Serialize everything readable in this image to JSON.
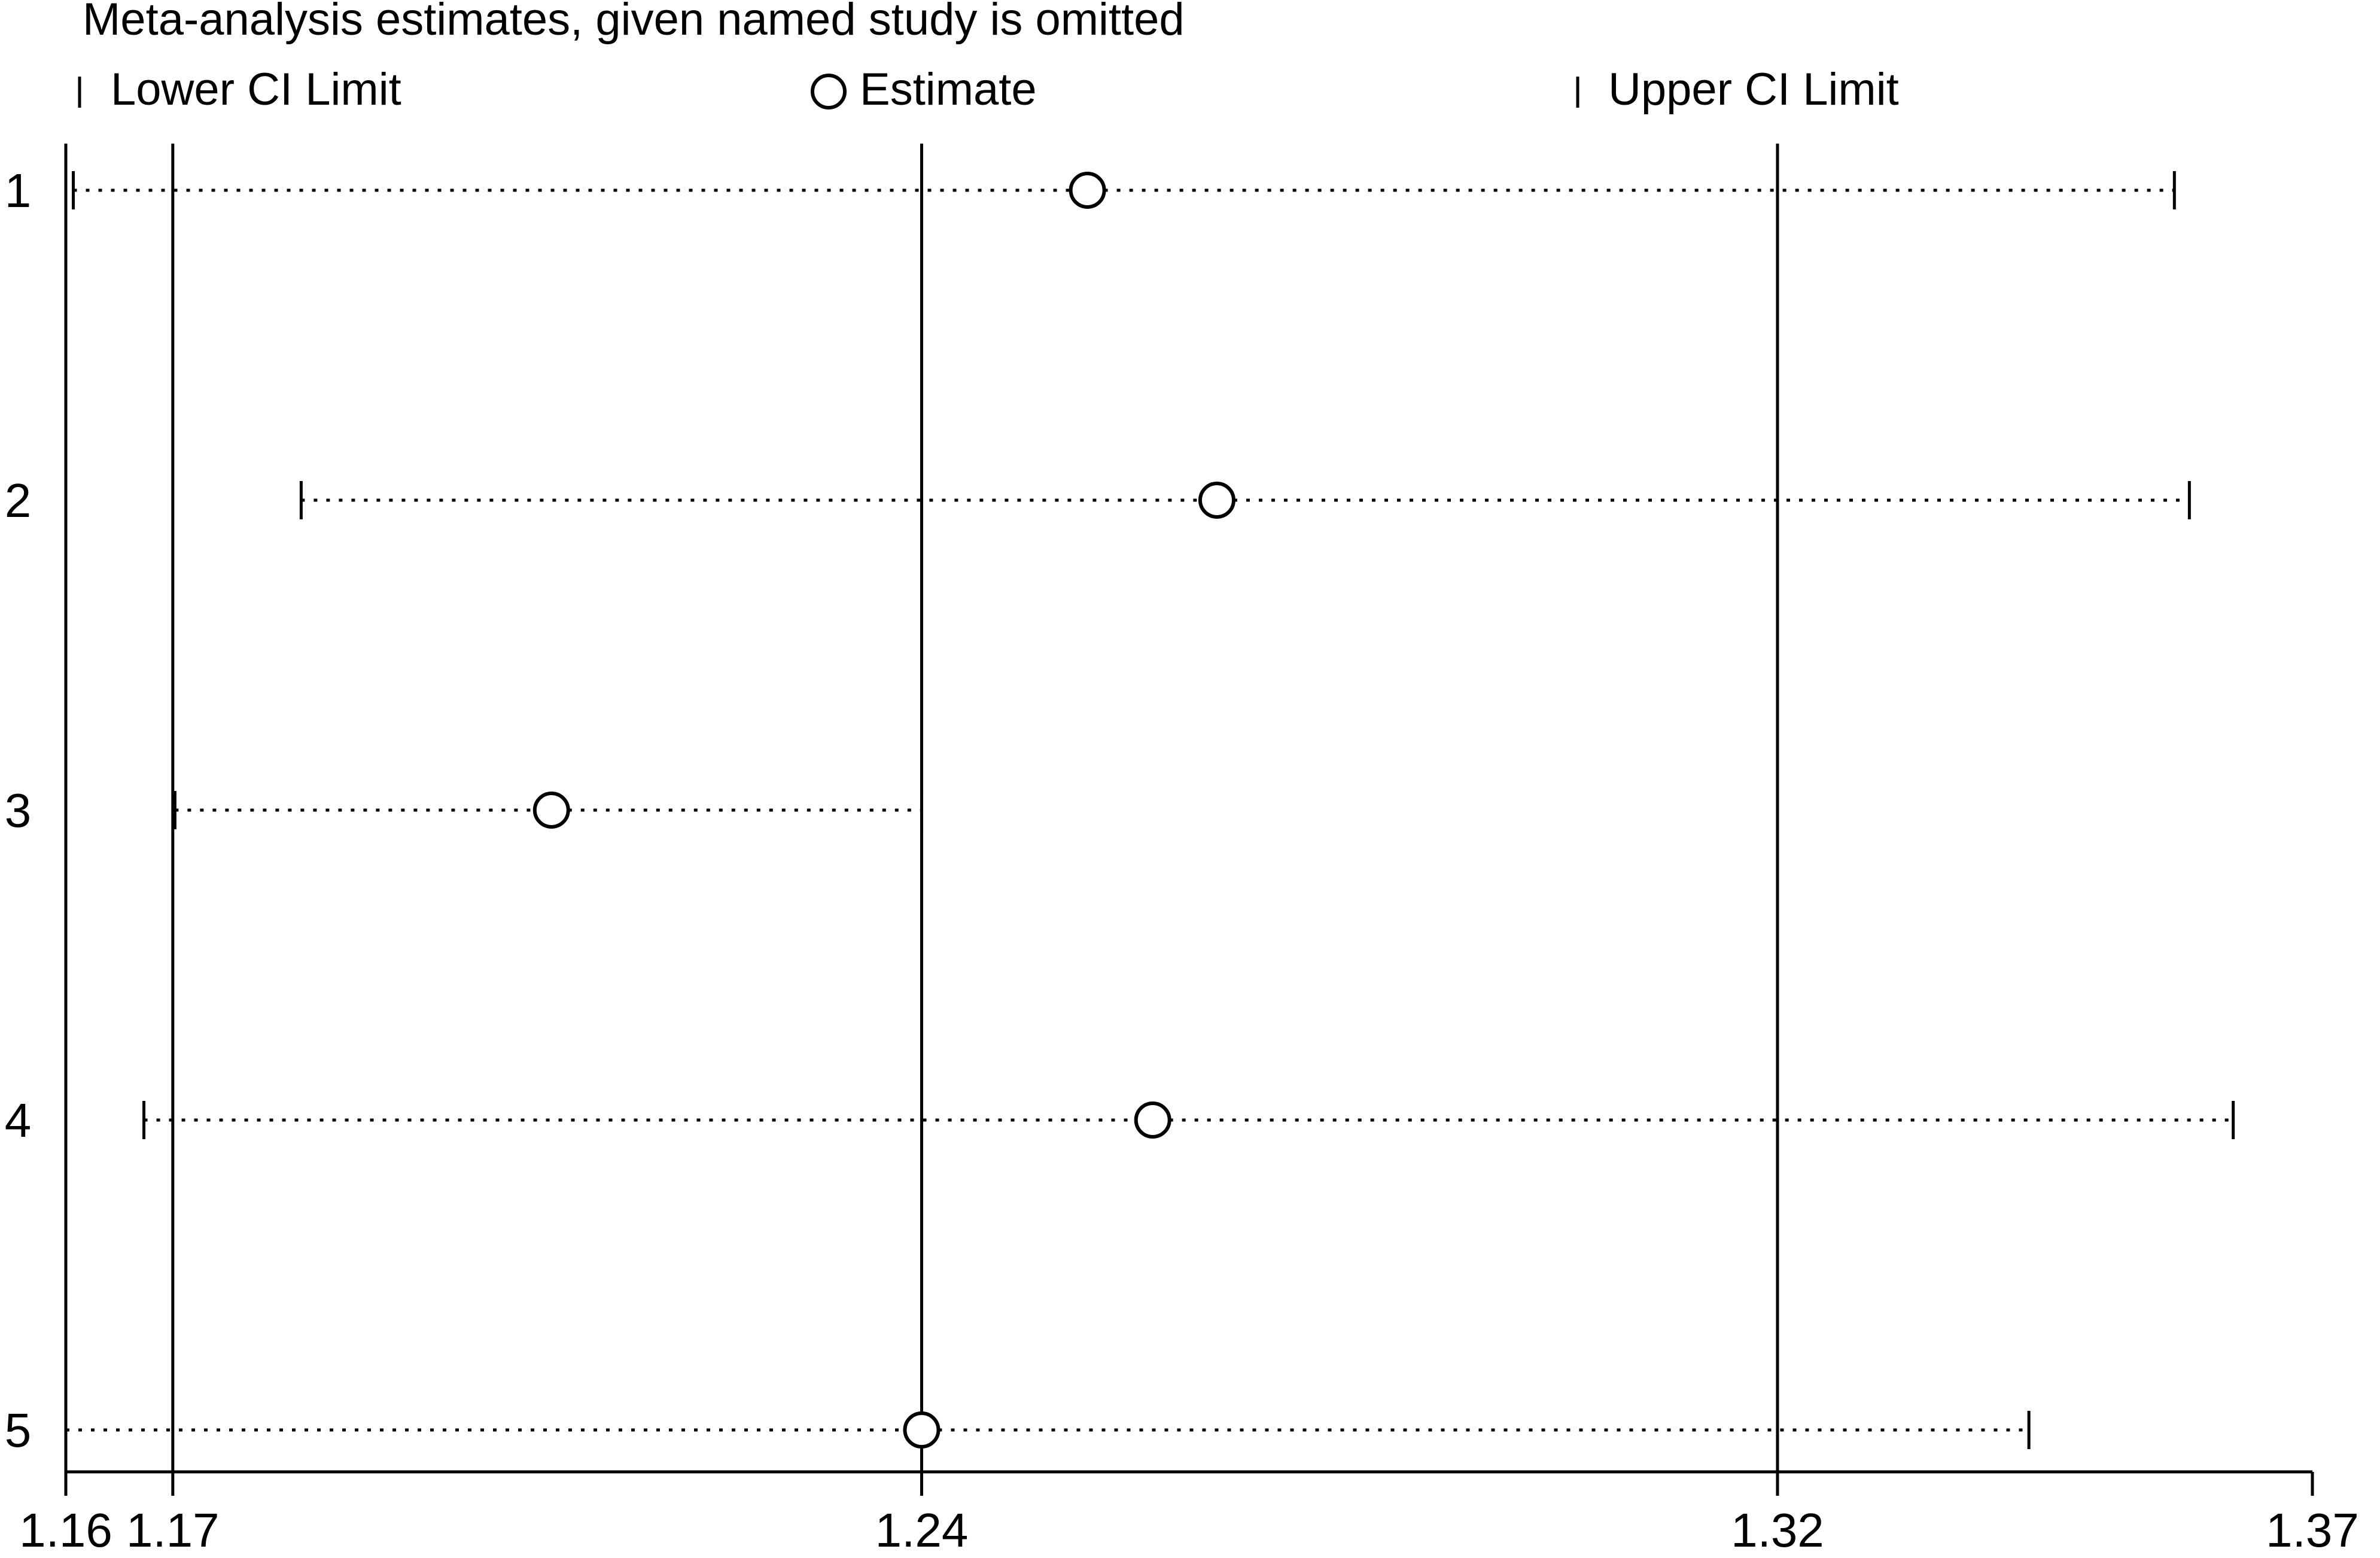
{
  "chart_data": {
    "type": "forest",
    "title": "Meta-analysis estimates, given named study is omitted",
    "legend": {
      "placement": "top",
      "entries": [
        {
          "key": "lower",
          "label": "Lower CI Limit",
          "symbol": "tick"
        },
        {
          "key": "estimate",
          "label": "Estimate",
          "symbol": "circle"
        },
        {
          "key": "upper",
          "label": "Upper CI Limit",
          "symbol": "tick"
        }
      ]
    },
    "xlim": [
      1.16,
      1.37
    ],
    "x_ticks": [
      {
        "value": 1.16,
        "label": "1.16"
      },
      {
        "value": 1.17,
        "label": "1.17"
      },
      {
        "value": 1.24,
        "label": "1.24"
      },
      {
        "value": 1.32,
        "label": "1.32"
      },
      {
        "value": 1.37,
        "label": "1.37"
      }
    ],
    "reference_lines": [
      1.17,
      1.24,
      1.32
    ],
    "studies": [
      {
        "label": "1",
        "lower": 1.1607,
        "estimate": 1.2555,
        "upper": 1.3571
      },
      {
        "label": "2",
        "lower": 1.182,
        "estimate": 1.2676,
        "upper": 1.3585
      },
      {
        "label": "3",
        "lower": 1.1702,
        "estimate": 1.2054,
        "upper": 1.24
      },
      {
        "label": "4",
        "lower": 1.1673,
        "estimate": 1.2616,
        "upper": 1.3626
      },
      {
        "label": "5",
        "lower": 1.16,
        "estimate": 1.24,
        "upper": 1.3435
      }
    ],
    "grid": false,
    "colors": {
      "ink": "#000000",
      "background": "#ffffff"
    }
  }
}
